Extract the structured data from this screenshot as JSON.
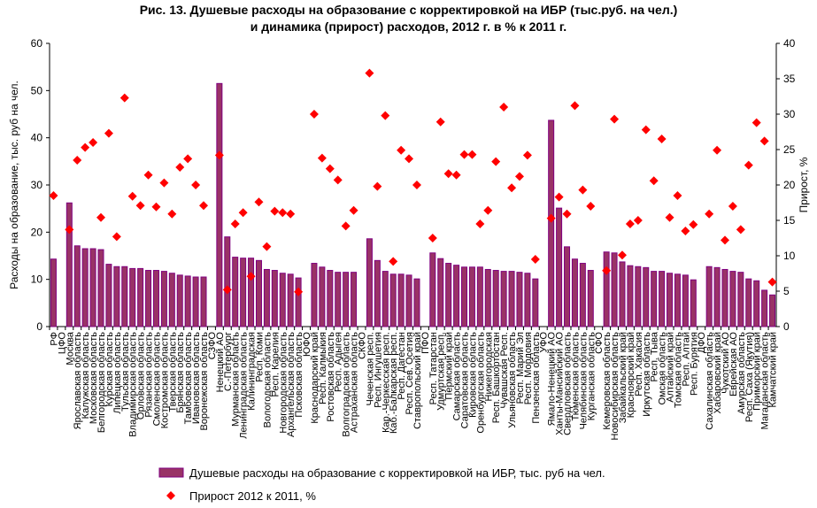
{
  "chart_data": {
    "type": "bar",
    "title_line1": "Рис. 13. Душевые расходы на образование с корректировкой на ИБР (тыс.руб. на чел.)",
    "title_line2": "и динамика (прирост) расходов, 2012 г. в % к 2011 г.",
    "ylabel": "Расходы на образование, тыс. руб на чел.",
    "y2label": "Прирост, %",
    "ylim": [
      0,
      60
    ],
    "y2lim": [
      0,
      40
    ],
    "yticks": [
      "0",
      "10",
      "20",
      "30",
      "40",
      "50",
      "60"
    ],
    "y2ticks": [
      "0",
      "5",
      "10",
      "15",
      "20",
      "25",
      "30",
      "35",
      "40"
    ],
    "legend_placement": "bottom",
    "colors": {
      "bars": "#993366",
      "bar_edge": "#800080",
      "markers": "#ff0000"
    },
    "categories": [
      "РФ",
      "ЦФО",
      "Москва",
      "Ярославская область",
      "Калужская область",
      "Московская область",
      "Белгородская область",
      "Курская область",
      "Липецкая область",
      "Тульская область",
      "Владимирская область",
      "Орловская область",
      "Рязанская область",
      "Смоленская область",
      "Костромская область",
      "Тверская область",
      "Брянская область",
      "Тамбовская область",
      "Ивановская область",
      "Воронежская область",
      "СЗФО",
      "Ненецкий АО",
      "С.-Петербург",
      "Мурманская область",
      "Ленинградская область",
      "Калининградская",
      "Респ. Коми",
      "Вологодская область",
      "Респ. Карелия",
      "Новгородская область",
      "Архангельская область",
      "Псковская область",
      "ЮФО",
      "Краснодарский край",
      "Респ. Калмыкия",
      "Ростовская область",
      "Респ. Адыгея",
      "Волгоградская область",
      "Астраханская область",
      "СКФО",
      "Чеченская респ.",
      "Респ. Ингушетия",
      "Кар.-Черкесская респ.",
      "Каб.-Балкарская респ.",
      "Респ. Дагестан",
      "Респ. Сев. Осетия",
      "Ставропольский край",
      "ПФО",
      "Респ. Татарстан",
      "Удмуртская респ.",
      "Пермский край",
      "Самарская область",
      "Саратовская область",
      "Кировская область",
      "Оренбургская область",
      "Нижегородская",
      "Респ. Башкортостан",
      "Чувашская Респ.",
      "Ульяновская область",
      "Респ. Марий Эл",
      "Респ. Мордовия",
      "Пензенская область",
      "УФО",
      "Ямало-Ненецкий АО",
      "Ханты-Мансийский АО",
      "Свердловская область",
      "Тюменская область",
      "Челябинская область",
      "Курганская область",
      "СФО",
      "Кемеровская область",
      "Новосибирская область",
      "Забайкальский край",
      "Красноярский край",
      "Респ. Хакасия",
      "Иркутская область",
      "Респ. Тыва",
      "Омская область",
      "Алтайский край",
      "Томская область",
      "Респ. Алтай",
      "Респ. Бурятия",
      "ДФО",
      "Сахалинская область",
      "Хабаровский край",
      "Чукотский АО",
      "Еврейская АО",
      "Амурская область",
      "Респ. Саха (Якутия)",
      "Приморский край",
      "Магаданская область",
      "Камчатский край"
    ],
    "series": [
      {
        "name": "Душевые расходы на образование с корректировкой на ИБР, тыс. руб на чел.",
        "type": "bar",
        "axis": "left",
        "values": [
          14.3,
          null,
          26.2,
          17.1,
          16.5,
          16.5,
          16.3,
          13.2,
          12.7,
          12.7,
          12.3,
          12.3,
          11.9,
          11.9,
          11.7,
          11.3,
          10.9,
          10.7,
          10.5,
          10.5,
          null,
          51.5,
          19.0,
          14.7,
          14.5,
          14.5,
          14.0,
          12.1,
          11.9,
          11.3,
          11.1,
          10.3,
          null,
          13.4,
          12.6,
          11.9,
          11.5,
          11.5,
          11.5,
          null,
          18.6,
          14.0,
          11.7,
          11.1,
          11.1,
          10.9,
          10.1,
          null,
          15.6,
          14.4,
          13.4,
          13.0,
          12.6,
          12.6,
          12.6,
          12.1,
          11.9,
          11.7,
          11.7,
          11.5,
          11.3,
          10.1,
          null,
          43.7,
          25.1,
          16.9,
          14.3,
          13.4,
          11.9,
          null,
          15.8,
          15.6,
          13.7,
          12.9,
          12.7,
          12.5,
          11.7,
          11.7,
          11.3,
          11.1,
          10.9,
          9.9,
          null,
          12.7,
          12.5,
          12.1,
          11.7,
          11.5,
          10.1,
          9.7,
          7.7,
          6.7
        ]
      },
      {
        "name": "Прирост 2012 к 2011, %",
        "type": "scatter",
        "axis": "right",
        "values": [
          18.5,
          null,
          13.7,
          23.5,
          25.3,
          26.0,
          15.4,
          27.3,
          12.7,
          32.3,
          18.4,
          17.1,
          21.4,
          16.9,
          20.3,
          15.9,
          22.5,
          23.7,
          20.0,
          17.1,
          null,
          24.2,
          5.2,
          14.5,
          16.1,
          7.1,
          17.6,
          11.3,
          16.3,
          16.1,
          15.9,
          4.9,
          null,
          30.0,
          23.8,
          22.3,
          20.7,
          14.2,
          16.4,
          null,
          35.8,
          19.8,
          29.8,
          9.2,
          24.9,
          23.7,
          20.0,
          null,
          12.5,
          28.9,
          21.6,
          21.4,
          24.3,
          24.3,
          14.5,
          16.4,
          23.3,
          31.0,
          19.6,
          21.2,
          24.2,
          9.5,
          null,
          15.3,
          18.3,
          15.9,
          31.2,
          19.3,
          17.0,
          null,
          7.9,
          29.3,
          10.1,
          14.5,
          15.0,
          27.8,
          20.6,
          26.5,
          15.4,
          18.5,
          13.5,
          14.4,
          null,
          15.9,
          24.9,
          12.2,
          17.0,
          13.7,
          22.8,
          28.8,
          26.2,
          6.3
        ]
      }
    ]
  }
}
